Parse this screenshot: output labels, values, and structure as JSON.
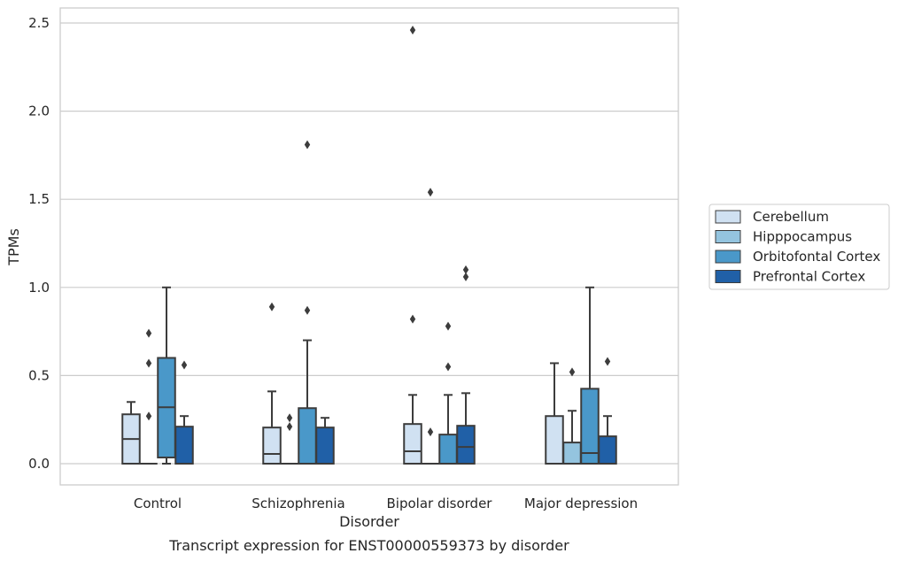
{
  "chart_data": {
    "type": "box",
    "caption": "Transcript expression for ENST00000559373 by disorder",
    "xlabel": "Disorder",
    "ylabel": "TPMs",
    "ylim": [
      -0.12,
      2.59
    ],
    "yticks": [
      "0.0",
      "0.5",
      "1.0",
      "1.5",
      "2.0",
      "2.5"
    ],
    "ytick_values": [
      0,
      0.5,
      1.0,
      1.5,
      2.0,
      2.5
    ],
    "grid": "horizontal",
    "legend_position": "right",
    "categories": [
      "Control",
      "Schizophrenia",
      "Bipolar disorder",
      "Major depression"
    ],
    "series": [
      {
        "name": "Cerebellum",
        "color": "#d0e1f2",
        "boxes": [
          {
            "whislo": 0,
            "q1": 0,
            "med": 0.14,
            "q3": 0.28,
            "whishi": 0.35,
            "fliers": []
          },
          {
            "whislo": 0,
            "q1": 0,
            "med": 0.055,
            "q3": 0.205,
            "whishi": 0.41,
            "fliers": [
              0.89
            ]
          },
          {
            "whislo": 0,
            "q1": 0,
            "med": 0.07,
            "q3": 0.225,
            "whishi": 0.39,
            "fliers": [
              0.82,
              2.46
            ]
          },
          {
            "whislo": 0,
            "q1": 0,
            "med": 0,
            "q3": 0.27,
            "whishi": 0.57,
            "fliers": []
          }
        ]
      },
      {
        "name": "Hipppocampus",
        "color": "#94c4df",
        "boxes": [
          {
            "whislo": 0,
            "q1": 0,
            "med": 0,
            "q3": 0,
            "whishi": 0,
            "fliers": [
              0.27,
              0.57,
              0.74
            ]
          },
          {
            "whislo": 0,
            "q1": 0,
            "med": 0,
            "q3": 0,
            "whishi": 0,
            "fliers": [
              0.21,
              0.26
            ]
          },
          {
            "whislo": 0,
            "q1": 0,
            "med": 0,
            "q3": 0,
            "whishi": 0,
            "fliers": [
              0.18,
              1.54
            ]
          },
          {
            "whislo": 0,
            "q1": 0,
            "med": 0,
            "q3": 0.12,
            "whishi": 0.3,
            "fliers": [
              0.52
            ]
          }
        ]
      },
      {
        "name": "Orbitofontal Cortex",
        "color": "#4a98c9",
        "boxes": [
          {
            "whislo": 0,
            "q1": 0.035,
            "med": 0.32,
            "q3": 0.6,
            "whishi": 1.0,
            "fliers": []
          },
          {
            "whislo": 0,
            "q1": 0,
            "med": 0,
            "q3": 0.315,
            "whishi": 0.7,
            "fliers": [
              0.87,
              1.81
            ]
          },
          {
            "whislo": 0,
            "q1": 0,
            "med": 0,
            "q3": 0.165,
            "whishi": 0.39,
            "fliers": [
              0.55,
              0.78
            ]
          },
          {
            "whislo": 0,
            "q1": 0,
            "med": 0.06,
            "q3": 0.425,
            "whishi": 1.0,
            "fliers": []
          }
        ]
      },
      {
        "name": "Prefrontal Cortex",
        "color": "#2060a7",
        "boxes": [
          {
            "whislo": 0,
            "q1": 0,
            "med": 0,
            "q3": 0.21,
            "whishi": 0.27,
            "fliers": [
              0.56
            ]
          },
          {
            "whislo": 0,
            "q1": 0,
            "med": 0,
            "q3": 0.205,
            "whishi": 0.26,
            "fliers": []
          },
          {
            "whislo": 0,
            "q1": 0,
            "med": 0.095,
            "q3": 0.215,
            "whishi": 0.4,
            "fliers": [
              1.06,
              1.1
            ]
          },
          {
            "whislo": 0,
            "q1": 0,
            "med": 0,
            "q3": 0.155,
            "whishi": 0.27,
            "fliers": [
              0.58
            ]
          }
        ]
      }
    ]
  }
}
